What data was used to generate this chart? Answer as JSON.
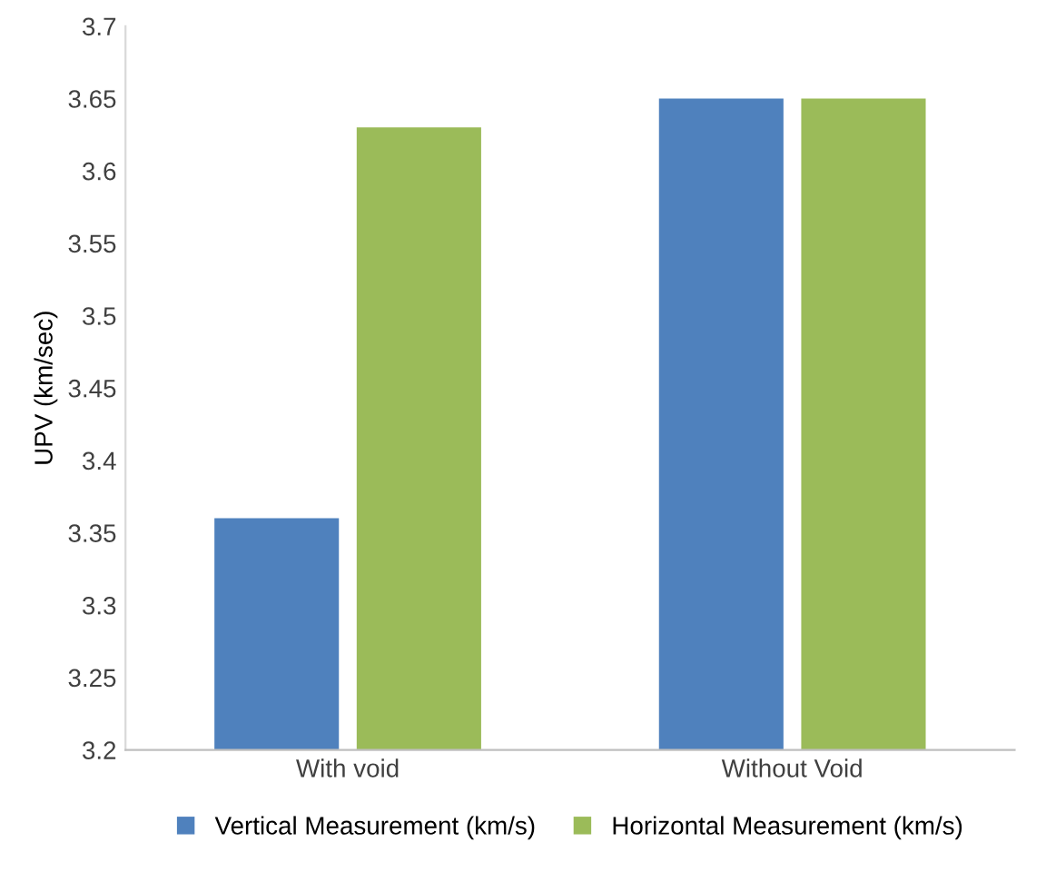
{
  "chart_data": {
    "type": "bar",
    "ylabel": "UPV (km/sec)",
    "categories": [
      "With void",
      "Without Void"
    ],
    "series": [
      {
        "name": "Vertical Measurement (km/s)",
        "color": "#4f81bd",
        "values": [
          3.36,
          3.65
        ]
      },
      {
        "name": "Horizontal Measurement (km/s)",
        "color": "#9bbb59",
        "values": [
          3.63,
          3.65
        ]
      }
    ],
    "ylim": [
      3.2,
      3.7
    ],
    "yticks": [
      3.2,
      3.25,
      3.3,
      3.35,
      3.4,
      3.45,
      3.5,
      3.55,
      3.6,
      3.65,
      3.7
    ],
    "grid": false,
    "legend": "bottom"
  }
}
